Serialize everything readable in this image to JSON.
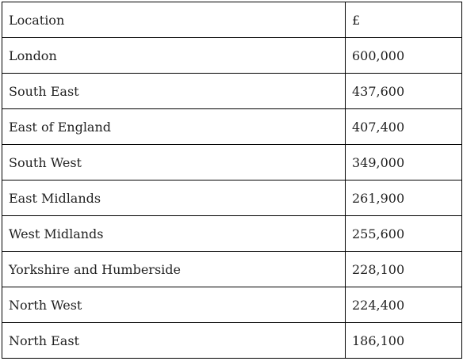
{
  "table": {
    "headers": [
      "Location",
      "£"
    ],
    "rows": [
      [
        "London",
        "600,000"
      ],
      [
        "South East",
        "437,600"
      ],
      [
        "East of England",
        "407,400"
      ],
      [
        "South West",
        "349,000"
      ],
      [
        "East Midlands",
        "261,900"
      ],
      [
        "West Midlands",
        "255,600"
      ],
      [
        "Yorkshire and Humberside",
        "228,100"
      ],
      [
        "North West",
        "224,400"
      ],
      [
        "North East",
        "186,100"
      ]
    ]
  }
}
